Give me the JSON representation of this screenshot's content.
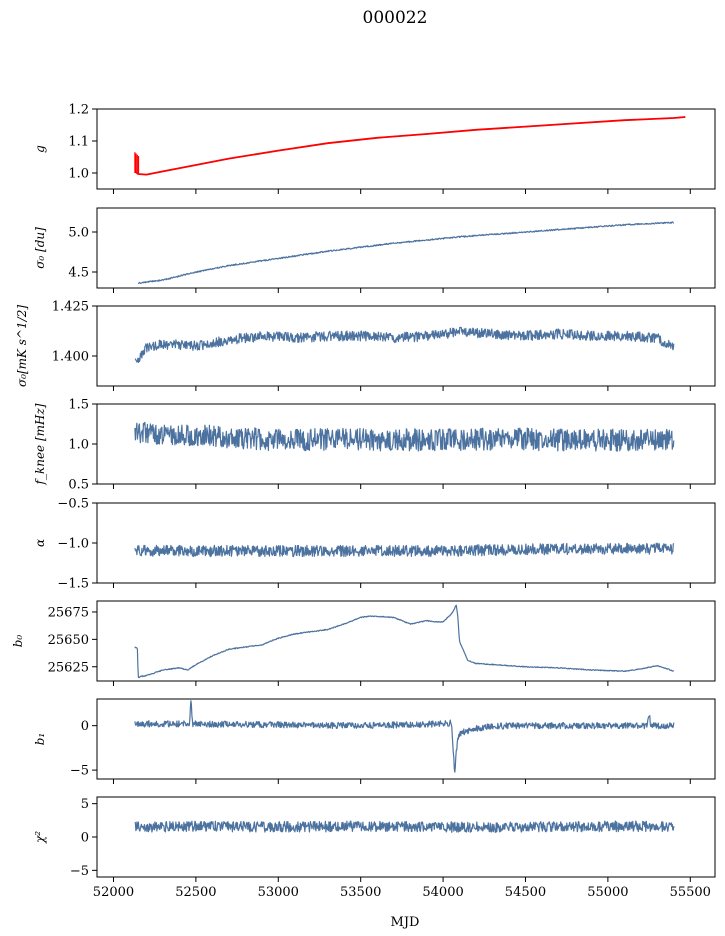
{
  "title": "000022",
  "colors": {
    "series": "#4c72a0",
    "fit": "#ff0000"
  },
  "chart_data": [
    {
      "type": "line",
      "label": "g",
      "ylim": [
        0.95,
        1.2
      ],
      "yticks": [
        {
          "v": 1.2,
          "t": "1.2"
        },
        {
          "v": 1.1,
          "t": "1.1"
        },
        {
          "v": 1.0,
          "t": "1.0"
        }
      ],
      "series": [
        {
          "values_x": [
            52130,
            52150,
            52200,
            52300,
            52500,
            52700,
            53000,
            53300,
            53600,
            53900,
            54200,
            54500,
            54800,
            55100,
            55400,
            55470
          ],
          "values_y": [
            1.005,
            0.997,
            0.995,
            1.005,
            1.025,
            1.045,
            1.07,
            1.093,
            1.11,
            1.122,
            1.135,
            1.145,
            1.155,
            1.165,
            1.172,
            1.175
          ]
        },
        {
          "color": "fit",
          "values_x": [
            52130,
            52150,
            52200,
            52300,
            52500,
            52700,
            53000,
            53300,
            53600,
            53900,
            54200,
            54500,
            54800,
            55100,
            55400,
            55470
          ],
          "values_y": [
            1.005,
            0.997,
            0.995,
            1.005,
            1.025,
            1.045,
            1.07,
            1.093,
            1.11,
            1.122,
            1.135,
            1.145,
            1.155,
            1.165,
            1.172,
            1.175
          ]
        }
      ],
      "spikes": [
        {
          "x": 52130,
          "y_from": 1.0,
          "y_to": 1.065,
          "color": "fit"
        }
      ]
    },
    {
      "type": "line",
      "label": "σ₀ [du]",
      "ylim": [
        4.3,
        5.3
      ],
      "yticks": [
        {
          "v": 5.0,
          "t": "5.0"
        },
        {
          "v": 4.5,
          "t": "4.5"
        }
      ],
      "series": [
        {
          "values_x": [
            52150,
            52300,
            52500,
            52700,
            52900,
            53100,
            53300,
            53500,
            53700,
            53900,
            54100,
            54300,
            54500,
            54700,
            54900,
            55100,
            55300,
            55400
          ],
          "values_y": [
            4.36,
            4.4,
            4.5,
            4.58,
            4.64,
            4.7,
            4.76,
            4.81,
            4.86,
            4.9,
            4.94,
            4.97,
            5.0,
            5.03,
            5.06,
            5.09,
            5.11,
            5.12
          ],
          "noise": 0.008,
          "seed": 2
        }
      ]
    },
    {
      "type": "line",
      "label": "σ₀[mK s^1/2]",
      "ylim": [
        1.385,
        1.425
      ],
      "yticks": [
        {
          "v": 1.425,
          "t": "1.425"
        },
        {
          "v": 1.4,
          "t": "1.400"
        }
      ],
      "series": [
        {
          "values_x": [
            52130,
            52140,
            52200,
            52300,
            52500,
            52700,
            52900,
            53100,
            53300,
            53500,
            53700,
            53900,
            54100,
            54300,
            54500,
            54700,
            54900,
            55100,
            55300,
            55400
          ],
          "values_y": [
            1.398,
            1.396,
            1.404,
            1.406,
            1.405,
            1.408,
            1.41,
            1.409,
            1.41,
            1.41,
            1.409,
            1.41,
            1.412,
            1.411,
            1.41,
            1.411,
            1.41,
            1.41,
            1.409,
            1.404
          ],
          "noise": 0.0025,
          "seed": 3
        }
      ]
    },
    {
      "type": "line",
      "label": "f_knee [mHz]",
      "ylim": [
        0.5,
        1.5
      ],
      "yticks": [
        {
          "v": 1.5,
          "t": "1.5"
        },
        {
          "v": 1.0,
          "t": "1.0"
        },
        {
          "v": 0.5,
          "t": "0.5"
        }
      ],
      "series": [
        {
          "values_x": [
            52130,
            52400,
            52700,
            53000,
            53300,
            53600,
            53900,
            54200,
            54500,
            54800,
            55100,
            55400
          ],
          "values_y": [
            1.15,
            1.12,
            1.08,
            1.05,
            1.06,
            1.05,
            1.05,
            1.06,
            1.06,
            1.05,
            1.05,
            1.06
          ],
          "noise": 0.14,
          "seed": 4
        }
      ]
    },
    {
      "type": "line",
      "label": "α",
      "ylim": [
        -1.5,
        -0.5
      ],
      "yticks": [
        {
          "v": -0.5,
          "t": "−0.5"
        },
        {
          "v": -1.0,
          "t": "−1.0"
        },
        {
          "v": -1.5,
          "t": "−1.5"
        }
      ],
      "series": [
        {
          "values_x": [
            52130,
            52500,
            53000,
            53500,
            54000,
            54500,
            55000,
            55400
          ],
          "values_y": [
            -1.1,
            -1.1,
            -1.1,
            -1.1,
            -1.1,
            -1.08,
            -1.07,
            -1.07
          ],
          "noise": 0.07,
          "seed": 5
        }
      ]
    },
    {
      "type": "line",
      "label": "b₀",
      "ylim": [
        25612,
        25685
      ],
      "yticks": [
        {
          "v": 25675,
          "t": "25675"
        },
        {
          "v": 25650,
          "t": "25650"
        },
        {
          "v": 25625,
          "t": "25625"
        }
      ],
      "series": [
        {
          "values_x": [
            52130,
            52145,
            52150,
            52160,
            52200,
            52300,
            52400,
            52450,
            52500,
            52600,
            52700,
            52800,
            52900,
            53000,
            53100,
            53200,
            53300,
            53400,
            53500,
            53550,
            53600,
            53700,
            53800,
            53900,
            53950,
            54000,
            54050,
            54070,
            54080,
            54090,
            54100,
            54150,
            54200,
            54300,
            54500,
            54700,
            54900,
            55100,
            55200,
            55300,
            55400
          ],
          "values_y": [
            25643,
            25642,
            25615,
            25616,
            25617,
            25622,
            25624,
            25622,
            25627,
            25635,
            25641,
            25643,
            25645,
            25651,
            25655,
            25657,
            25659,
            25664,
            25670,
            25671,
            25671,
            25670,
            25664,
            25667,
            25666,
            25666,
            25673,
            25678,
            25682,
            25670,
            25648,
            25631,
            25628,
            25627,
            25625,
            25624,
            25622,
            25621,
            25623,
            25626,
            25621
          ],
          "noise": 0.4,
          "seed": 6
        }
      ]
    },
    {
      "type": "line",
      "label": "b₁",
      "ylim": [
        -6,
        3
      ],
      "yticks": [
        {
          "v": 0,
          "t": "0"
        },
        {
          "v": -5,
          "t": "−5"
        }
      ],
      "series": [
        {
          "values_x": [
            52130,
            52460,
            52470,
            52480,
            52490,
            52500,
            53000,
            53500,
            54000,
            54050,
            54060,
            54070,
            54080,
            54090,
            54110,
            54200,
            54300,
            54400,
            54600,
            55000,
            55240,
            55250,
            55260,
            55400
          ],
          "values_y": [
            0.2,
            0.2,
            2.8,
            0.2,
            0.2,
            0.2,
            0.1,
            0.0,
            0.2,
            0.3,
            -2.0,
            -5.4,
            -3.0,
            -1.5,
            -0.8,
            -0.3,
            -0.1,
            0.0,
            0.0,
            0.0,
            0.0,
            1.5,
            0.0,
            0.0
          ],
          "noise": 0.35,
          "seed": 7
        }
      ]
    },
    {
      "type": "line",
      "label": "χ²",
      "ylim": [
        -6,
        6
      ],
      "yticks": [
        {
          "v": 5,
          "t": "5"
        },
        {
          "v": 0,
          "t": "0"
        },
        {
          "v": -5,
          "t": "−5"
        }
      ],
      "series": [
        {
          "values_x": [
            52130,
            52500,
            53000,
            53500,
            54000,
            54500,
            55000,
            55400
          ],
          "values_y": [
            1.5,
            1.6,
            1.5,
            1.6,
            1.5,
            1.5,
            1.6,
            1.6
          ],
          "noise": 0.8,
          "seed": 8
        }
      ]
    }
  ],
  "xaxis": {
    "label": "MJD",
    "xlim": [
      51900,
      55650
    ],
    "ticks": [
      52000,
      52500,
      53000,
      53500,
      54000,
      54500,
      55000,
      55500
    ]
  }
}
